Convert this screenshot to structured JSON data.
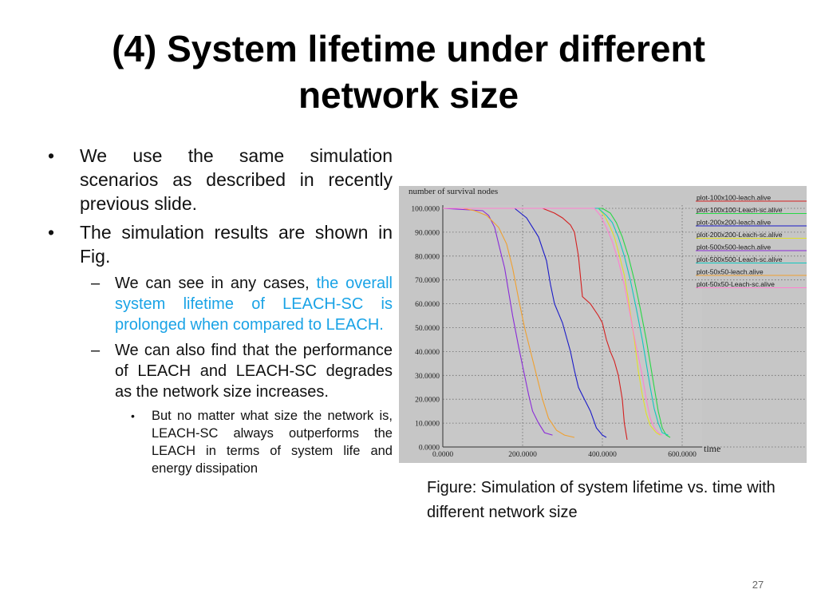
{
  "slide": {
    "title": "(4) System lifetime under different network size",
    "page_number": "27",
    "caption": "Figure: Simulation of system lifetime vs. time with different network size"
  },
  "bullets": {
    "b1": "We use the same simulation scenarios as described in recently previous slide.",
    "b2": "The simulation results are shown in Fig.",
    "b2_sub1_plain": "We can see in any cases, ",
    "b2_sub1_highlight": "the overall system lifetime of LEACH-SC is prolonged when compared to LEACH.",
    "b2_sub2": "We can also find that the performance of LEACH and LEACH-SC degrades as the network size increases.",
    "b2_sub2_sub1": "But no matter what size the network is, LEACH-SC always outperforms the LEACH in terms of system life and energy dissipation"
  },
  "colors": {
    "highlight": "#1aa3e6",
    "plot_bg": "#c6c6c6"
  },
  "chart_data": {
    "type": "line",
    "xlabel": "time",
    "ylabel": "number of survival nodes",
    "xlim": [
      0,
      650
    ],
    "ylim": [
      0,
      100
    ],
    "x_ticks": [
      "0.0000",
      "200.0000",
      "400.0000",
      "600.0000"
    ],
    "x_tick_values": [
      0,
      200,
      400,
      600
    ],
    "y_ticks": [
      "0.0000",
      "10.0000",
      "20.0000",
      "30.0000",
      "40.0000",
      "50.0000",
      "60.0000",
      "70.0000",
      "80.0000",
      "90.0000",
      "100.0000"
    ],
    "y_tick_values": [
      0,
      10,
      20,
      30,
      40,
      50,
      60,
      70,
      80,
      90,
      100
    ],
    "grid": true,
    "legend_position": "top-right",
    "series": [
      {
        "name": "plot-100x100-leach.alive",
        "color": "#d42020",
        "points": [
          [
            0,
            100
          ],
          [
            250,
            100
          ],
          [
            265,
            99
          ],
          [
            280,
            98
          ],
          [
            300,
            96
          ],
          [
            320,
            93
          ],
          [
            330,
            90
          ],
          [
            340,
            80
          ],
          [
            350,
            63
          ],
          [
            370,
            60
          ],
          [
            390,
            55
          ],
          [
            400,
            52
          ],
          [
            410,
            45
          ],
          [
            420,
            40
          ],
          [
            430,
            36
          ],
          [
            440,
            30
          ],
          [
            450,
            20
          ],
          [
            455,
            10
          ],
          [
            460,
            5
          ],
          [
            462,
            3
          ]
        ]
      },
      {
        "name": "plot-100x100-Leach-sc.alive",
        "color": "#27d846",
        "points": [
          [
            0,
            100
          ],
          [
            400,
            100
          ],
          [
            420,
            98
          ],
          [
            435,
            94
          ],
          [
            450,
            88
          ],
          [
            465,
            80
          ],
          [
            480,
            70
          ],
          [
            495,
            58
          ],
          [
            510,
            45
          ],
          [
            520,
            35
          ],
          [
            530,
            25
          ],
          [
            540,
            15
          ],
          [
            550,
            8
          ],
          [
            560,
            5
          ],
          [
            570,
            4
          ]
        ]
      },
      {
        "name": "plot-200x200-leach.alive",
        "color": "#1a1ac8",
        "points": [
          [
            0,
            100
          ],
          [
            180,
            100
          ],
          [
            195,
            98
          ],
          [
            210,
            96
          ],
          [
            225,
            92
          ],
          [
            240,
            88
          ],
          [
            260,
            78
          ],
          [
            270,
            68
          ],
          [
            280,
            60
          ],
          [
            290,
            56
          ],
          [
            300,
            52
          ],
          [
            310,
            46
          ],
          [
            320,
            40
          ],
          [
            330,
            32
          ],
          [
            340,
            25
          ],
          [
            355,
            20
          ],
          [
            370,
            15
          ],
          [
            385,
            8
          ],
          [
            400,
            5
          ],
          [
            410,
            4
          ]
        ]
      },
      {
        "name": "plot-200x200-Leach-sc.alive",
        "color": "#e0e02a",
        "points": [
          [
            0,
            100
          ],
          [
            390,
            100
          ],
          [
            405,
            97
          ],
          [
            420,
            92
          ],
          [
            430,
            88
          ],
          [
            440,
            82
          ],
          [
            455,
            72
          ],
          [
            465,
            62
          ],
          [
            480,
            45
          ],
          [
            490,
            32
          ],
          [
            500,
            22
          ],
          [
            510,
            14
          ],
          [
            520,
            9
          ],
          [
            535,
            6
          ],
          [
            545,
            5
          ]
        ]
      },
      {
        "name": "plot-500x500-leach.alive",
        "color": "#8a2ad8",
        "points": [
          [
            0,
            100
          ],
          [
            100,
            99
          ],
          [
            115,
            97
          ],
          [
            130,
            92
          ],
          [
            140,
            85
          ],
          [
            155,
            75
          ],
          [
            165,
            65
          ],
          [
            175,
            55
          ],
          [
            190,
            42
          ],
          [
            205,
            30
          ],
          [
            215,
            22
          ],
          [
            225,
            15
          ],
          [
            240,
            10
          ],
          [
            255,
            6
          ],
          [
            275,
            5
          ]
        ]
      },
      {
        "name": "plot-500x500-Leach-sc.alive",
        "color": "#10c8c0",
        "points": [
          [
            0,
            100
          ],
          [
            390,
            100
          ],
          [
            410,
            97
          ],
          [
            425,
            94
          ],
          [
            440,
            88
          ],
          [
            455,
            80
          ],
          [
            470,
            70
          ],
          [
            485,
            58
          ],
          [
            500,
            45
          ],
          [
            510,
            35
          ],
          [
            520,
            25
          ],
          [
            530,
            16
          ],
          [
            540,
            10
          ],
          [
            550,
            6
          ],
          [
            565,
            5
          ]
        ]
      },
      {
        "name": "plot-50x50-leach.alive",
        "color": "#f0a030",
        "points": [
          [
            0,
            100
          ],
          [
            50,
            100
          ],
          [
            80,
            99
          ],
          [
            110,
            97
          ],
          [
            140,
            92
          ],
          [
            160,
            85
          ],
          [
            175,
            75
          ],
          [
            190,
            62
          ],
          [
            205,
            50
          ],
          [
            220,
            40
          ],
          [
            235,
            30
          ],
          [
            250,
            20
          ],
          [
            265,
            12
          ],
          [
            285,
            7
          ],
          [
            305,
            5
          ],
          [
            330,
            4
          ]
        ]
      },
      {
        "name": "plot-50x50-Leach-sc.alive",
        "color": "#ff80d0",
        "points": [
          [
            0,
            100
          ],
          [
            380,
            100
          ],
          [
            395,
            97
          ],
          [
            410,
            92
          ],
          [
            425,
            86
          ],
          [
            440,
            78
          ],
          [
            455,
            68
          ],
          [
            470,
            55
          ],
          [
            485,
            42
          ],
          [
            500,
            30
          ],
          [
            510,
            20
          ],
          [
            520,
            12
          ],
          [
            530,
            8
          ],
          [
            540,
            6
          ],
          [
            550,
            5
          ]
        ]
      }
    ]
  }
}
